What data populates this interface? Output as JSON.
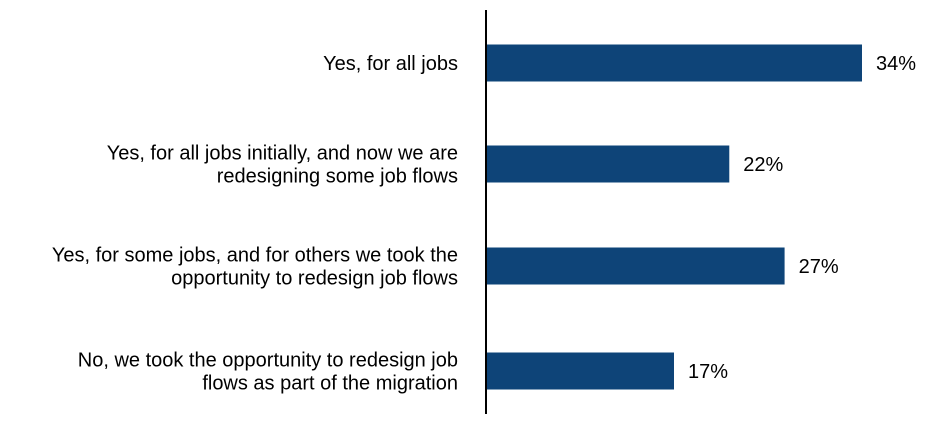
{
  "chart_data": {
    "type": "bar",
    "orientation": "horizontal",
    "categories": [
      [
        "Yes, for all jobs"
      ],
      [
        "Yes, for all jobs initially, and now we are",
        "redesigning some job flows"
      ],
      [
        "Yes, for some jobs, and for others we took the",
        "opportunity to redesign job flows"
      ],
      [
        "No, we took the opportunity to redesign job",
        "flows as part of the migration"
      ]
    ],
    "values": [
      34,
      22,
      27,
      17
    ],
    "value_labels": [
      "34%",
      "22%",
      "27%",
      "17%"
    ],
    "unit": "%",
    "xlim": [
      0,
      34
    ],
    "grid": false,
    "legend": "none",
    "bar_color": "#0e4478",
    "axis_color": "#000000"
  }
}
